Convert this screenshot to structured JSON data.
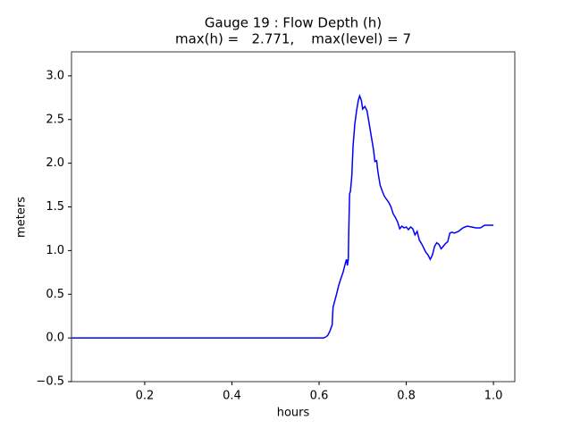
{
  "chart_data": {
    "type": "line",
    "title": "Gauge 19 : Flow Depth (h)",
    "subtitle": "max(h) =   2.771,    max(level) = 7",
    "x_label": "hours",
    "y_label": "meters",
    "xlim": [
      0.032,
      1.049
    ],
    "ylim": [
      -0.5,
      3.275
    ],
    "xticks": [
      0.2,
      0.4,
      0.6,
      0.8,
      {
        "value": 1,
        "label": "1.0"
      }
    ],
    "yticks": [
      {
        "value": -0.5,
        "label": "−0.5"
      },
      {
        "value": 0,
        "label": "0.0"
      },
      0.5,
      {
        "value": 1,
        "label": "1.0"
      },
      1.5,
      {
        "value": 2,
        "label": "2.0"
      },
      2.5,
      {
        "value": 3,
        "label": "3.0"
      }
    ],
    "grid": false,
    "series": [
      {
        "name": "h",
        "color": "#0000ff",
        "x": [
          0.033,
          0.61,
          0.615,
          0.62,
          0.625,
          0.63,
          0.632,
          0.64,
          0.645,
          0.65,
          0.655,
          0.66,
          0.663,
          0.665,
          0.667,
          0.668,
          0.67,
          0.672,
          0.675,
          0.678,
          0.682,
          0.686,
          0.69,
          0.693,
          0.697,
          0.7,
          0.705,
          0.71,
          0.715,
          0.72,
          0.725,
          0.728,
          0.732,
          0.735,
          0.74,
          0.745,
          0.75,
          0.76,
          0.765,
          0.77,
          0.775,
          0.78,
          0.785,
          0.79,
          0.795,
          0.8,
          0.805,
          0.81,
          0.815,
          0.82,
          0.825,
          0.83,
          0.835,
          0.84,
          0.845,
          0.85,
          0.855,
          0.86,
          0.865,
          0.87,
          0.875,
          0.88,
          0.885,
          0.89,
          0.895,
          0.9,
          0.905,
          0.91,
          0.92,
          0.93,
          0.94,
          0.95,
          0.96,
          0.97,
          0.98,
          0.99,
          1.0
        ],
        "values": [
          0,
          0,
          0.01,
          0.03,
          0.08,
          0.15,
          0.35,
          0.5,
          0.6,
          0.68,
          0.75,
          0.85,
          0.9,
          0.83,
          0.9,
          1.2,
          1.65,
          1.68,
          1.85,
          2.2,
          2.45,
          2.6,
          2.72,
          2.771,
          2.72,
          2.62,
          2.65,
          2.6,
          2.45,
          2.3,
          2.15,
          2.02,
          2.03,
          1.9,
          1.75,
          1.68,
          1.62,
          1.55,
          1.5,
          1.42,
          1.38,
          1.33,
          1.25,
          1.28,
          1.26,
          1.27,
          1.24,
          1.27,
          1.25,
          1.18,
          1.22,
          1.12,
          1.08,
          1.03,
          0.98,
          0.95,
          0.9,
          0.95,
          1.05,
          1.09,
          1.07,
          1.02,
          1.05,
          1.08,
          1.1,
          1.2,
          1.21,
          1.2,
          1.22,
          1.26,
          1.28,
          1.27,
          1.26,
          1.26,
          1.29,
          1.29,
          1.29
        ]
      }
    ]
  }
}
